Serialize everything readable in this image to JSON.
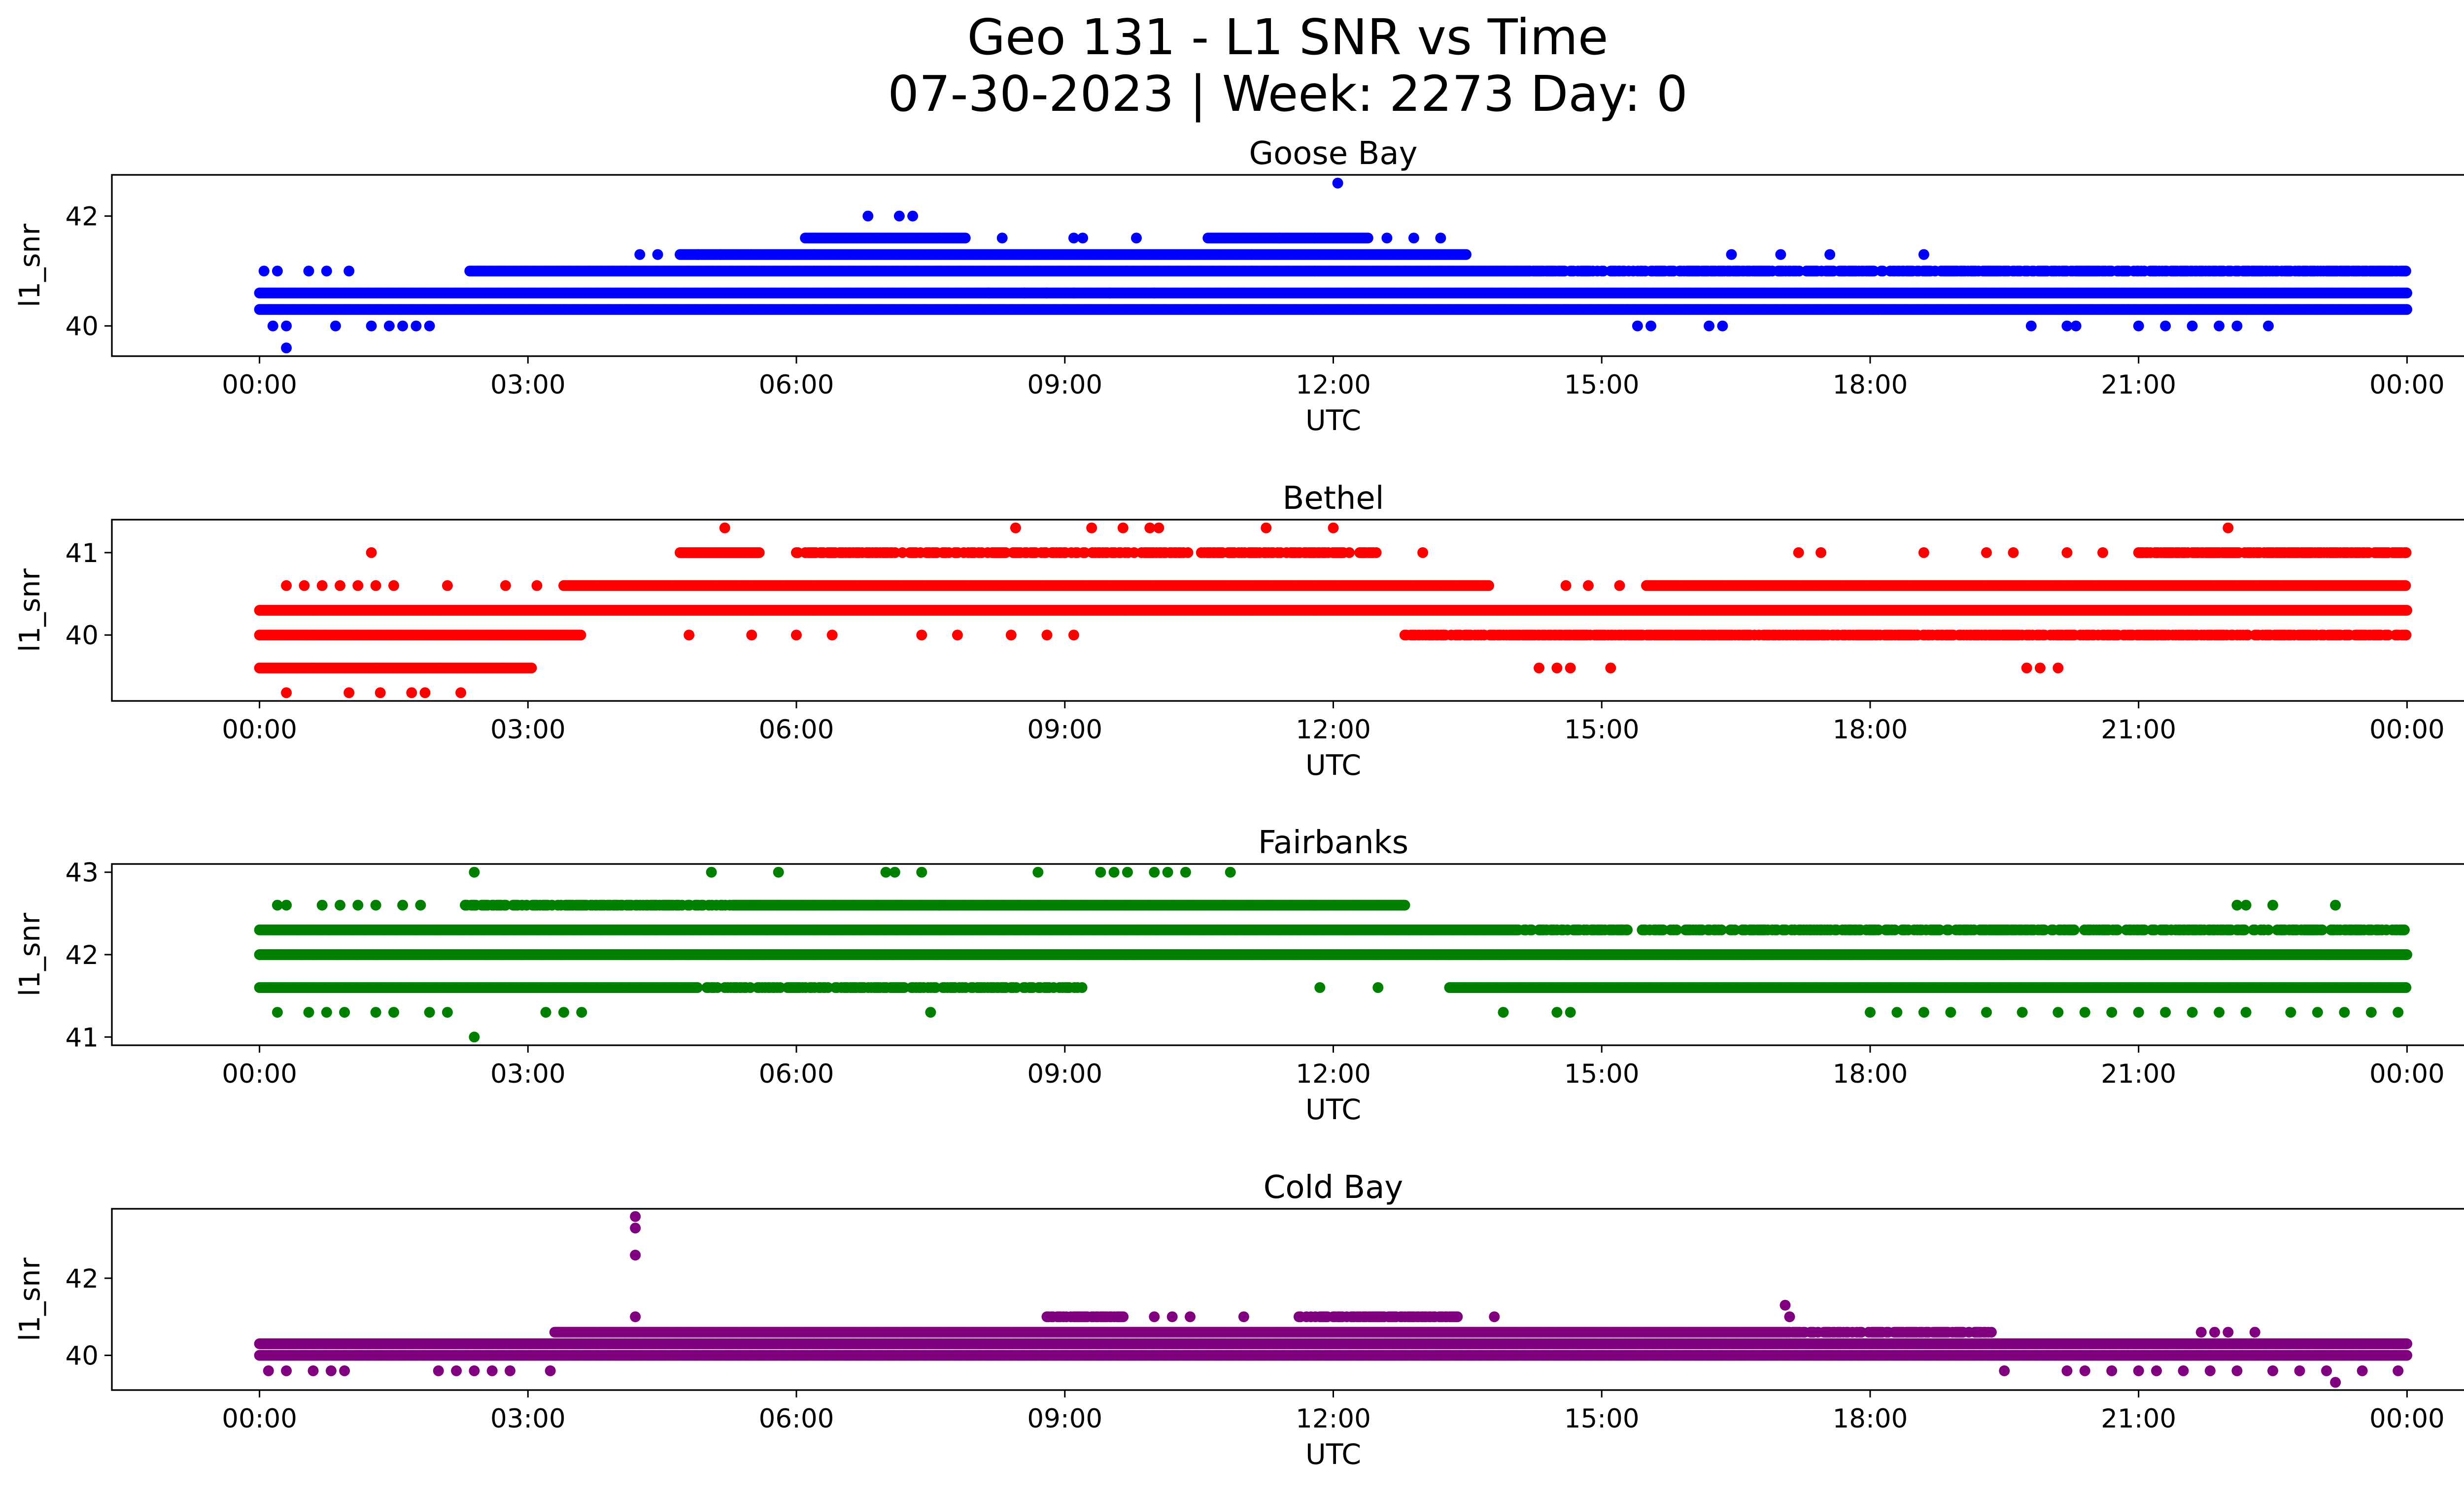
{
  "title": "Geo 131 - L1 SNR vs Time",
  "subtitle": "07-30-2023 | Week: 2273 Day: 0",
  "chart_data": [
    {
      "type": "scatter",
      "title": "Goose Bay",
      "xlabel": "UTC",
      "ylabel": "l1_snr",
      "color": "#0000ff",
      "xlim": [
        -1.65,
        25.65
      ],
      "ylim": [
        39.45,
        42.75
      ],
      "xticks": [
        0,
        3,
        6,
        9,
        12,
        15,
        18,
        21,
        24
      ],
      "xtick_labels": [
        "00:00",
        "03:00",
        "06:00",
        "09:00",
        "12:00",
        "15:00",
        "18:00",
        "21:00",
        "00:00"
      ],
      "yticks": [
        40,
        42
      ],
      "bands": [
        {
          "y": 40.3,
          "start": 0.0,
          "end": 24.0
        },
        {
          "y": 40.6,
          "start": 0.0,
          "end": 24.0
        },
        {
          "y": 41.0,
          "start": 2.35,
          "end": 14.2
        },
        {
          "y": 41.0,
          "start": 14.2,
          "end": 24.0,
          "density": 0.7
        },
        {
          "y": 41.3,
          "start": 4.7,
          "end": 13.5
        },
        {
          "y": 41.6,
          "start": 6.1,
          "end": 7.9
        },
        {
          "y": 41.6,
          "start": 10.6,
          "end": 12.4
        }
      ],
      "points": [
        [
          0.05,
          41.0
        ],
        [
          0.2,
          41.0
        ],
        [
          0.55,
          41.0
        ],
        [
          0.75,
          41.0
        ],
        [
          1.0,
          41.0
        ],
        [
          0.15,
          40.0
        ],
        [
          0.3,
          40.0
        ],
        [
          0.85,
          40.0
        ],
        [
          1.25,
          40.0
        ],
        [
          1.45,
          40.0
        ],
        [
          1.6,
          40.0
        ],
        [
          1.75,
          40.0
        ],
        [
          1.9,
          40.0
        ],
        [
          0.3,
          39.6
        ],
        [
          4.25,
          41.3
        ],
        [
          4.45,
          41.3
        ],
        [
          4.9,
          41.3
        ],
        [
          5.15,
          41.3
        ],
        [
          6.8,
          42.0
        ],
        [
          7.15,
          42.0
        ],
        [
          7.3,
          42.0
        ],
        [
          8.3,
          41.6
        ],
        [
          9.1,
          41.6
        ],
        [
          9.2,
          41.6
        ],
        [
          9.8,
          41.6
        ],
        [
          11.4,
          41.6
        ],
        [
          12.6,
          41.6
        ],
        [
          12.9,
          41.6
        ],
        [
          13.2,
          41.6
        ],
        [
          8.15,
          40.6
        ],
        [
          8.55,
          40.6
        ],
        [
          8.8,
          40.6
        ],
        [
          9.1,
          40.6
        ],
        [
          9.5,
          40.6
        ],
        [
          10.0,
          40.6
        ],
        [
          12.05,
          42.6
        ],
        [
          15.4,
          40.0
        ],
        [
          15.55,
          40.0
        ],
        [
          16.2,
          40.0
        ],
        [
          16.35,
          40.0
        ],
        [
          19.8,
          40.0
        ],
        [
          20.2,
          40.0
        ],
        [
          20.3,
          40.0
        ],
        [
          21.0,
          40.0
        ],
        [
          21.3,
          40.0
        ],
        [
          21.6,
          40.0
        ],
        [
          21.9,
          40.0
        ],
        [
          22.1,
          40.0
        ],
        [
          22.45,
          40.0
        ],
        [
          16.45,
          41.3
        ],
        [
          17.0,
          41.3
        ],
        [
          17.55,
          41.3
        ],
        [
          18.6,
          41.3
        ]
      ]
    },
    {
      "type": "scatter",
      "title": "Bethel",
      "xlabel": "UTC",
      "ylabel": "l1_snr",
      "color": "#ff0000",
      "xlim": [
        -1.65,
        25.65
      ],
      "ylim": [
        39.2,
        41.4
      ],
      "xticks": [
        0,
        3,
        6,
        9,
        12,
        15,
        18,
        21,
        24
      ],
      "xtick_labels": [
        "00:00",
        "03:00",
        "06:00",
        "09:00",
        "12:00",
        "15:00",
        "18:00",
        "21:00",
        "00:00"
      ],
      "yticks": [
        40,
        41
      ],
      "bands": [
        {
          "y": 39.6,
          "start": 0.0,
          "end": 3.05
        },
        {
          "y": 40.0,
          "start": 0.0,
          "end": 3.6
        },
        {
          "y": 40.0,
          "start": 12.8,
          "end": 24.0,
          "density": 0.7
        },
        {
          "y": 40.3,
          "start": 0.0,
          "end": 24.0
        },
        {
          "y": 40.6,
          "start": 3.4,
          "end": 13.75
        },
        {
          "y": 40.6,
          "start": 15.5,
          "end": 24.0
        },
        {
          "y": 41.0,
          "start": 4.7,
          "end": 5.6
        },
        {
          "y": 41.0,
          "start": 6.0,
          "end": 12.5,
          "density": 0.55
        },
        {
          "y": 41.0,
          "start": 21.0,
          "end": 24.0,
          "density": 0.75
        }
      ],
      "points": [
        [
          0.3,
          39.3
        ],
        [
          1.0,
          39.3
        ],
        [
          1.35,
          39.3
        ],
        [
          1.7,
          39.3
        ],
        [
          1.85,
          39.3
        ],
        [
          2.25,
          39.3
        ],
        [
          0.3,
          40.6
        ],
        [
          0.5,
          40.6
        ],
        [
          0.7,
          40.6
        ],
        [
          0.9,
          40.6
        ],
        [
          1.1,
          40.6
        ],
        [
          1.3,
          40.6
        ],
        [
          1.5,
          40.6
        ],
        [
          2.1,
          40.6
        ],
        [
          2.75,
          40.6
        ],
        [
          3.1,
          40.6
        ],
        [
          1.25,
          41.0
        ],
        [
          5.2,
          41.3
        ],
        [
          8.45,
          41.3
        ],
        [
          9.3,
          41.3
        ],
        [
          9.65,
          41.3
        ],
        [
          9.95,
          41.3
        ],
        [
          10.05,
          41.3
        ],
        [
          11.25,
          41.3
        ],
        [
          12.0,
          41.3
        ],
        [
          22.0,
          41.3
        ],
        [
          4.8,
          40.0
        ],
        [
          5.5,
          40.0
        ],
        [
          6.0,
          40.0
        ],
        [
          6.4,
          40.0
        ],
        [
          7.4,
          40.0
        ],
        [
          7.8,
          40.0
        ],
        [
          8.4,
          40.0
        ],
        [
          8.8,
          40.0
        ],
        [
          9.1,
          40.0
        ],
        [
          14.3,
          39.6
        ],
        [
          14.5,
          39.6
        ],
        [
          14.65,
          39.6
        ],
        [
          15.1,
          39.6
        ],
        [
          19.75,
          39.6
        ],
        [
          19.9,
          39.6
        ],
        [
          20.1,
          39.6
        ],
        [
          13.0,
          41.0
        ],
        [
          17.2,
          41.0
        ],
        [
          17.45,
          41.0
        ],
        [
          18.6,
          41.0
        ],
        [
          19.3,
          41.0
        ],
        [
          19.6,
          41.0
        ],
        [
          20.2,
          41.0
        ],
        [
          20.6,
          41.0
        ],
        [
          14.6,
          40.6
        ],
        [
          14.85,
          40.6
        ],
        [
          15.2,
          40.6
        ]
      ]
    },
    {
      "type": "scatter",
      "title": "Fairbanks",
      "xlabel": "UTC",
      "ylabel": "l1_snr",
      "color": "#008000",
      "xlim": [
        -1.65,
        25.65
      ],
      "ylim": [
        40.9,
        43.1
      ],
      "xticks": [
        0,
        3,
        6,
        9,
        12,
        15,
        18,
        21,
        24
      ],
      "xtick_labels": [
        "00:00",
        "03:00",
        "06:00",
        "09:00",
        "12:00",
        "15:00",
        "18:00",
        "21:00",
        "00:00"
      ],
      "yticks": [
        41,
        42,
        43
      ],
      "bands": [
        {
          "y": 41.6,
          "start": 0.0,
          "end": 4.9
        },
        {
          "y": 41.6,
          "start": 5.0,
          "end": 9.2,
          "density": 0.55
        },
        {
          "y": 41.6,
          "start": 13.3,
          "end": 24.0
        },
        {
          "y": 42.0,
          "start": 0.0,
          "end": 24.0
        },
        {
          "y": 42.3,
          "start": 0.0,
          "end": 14.05
        },
        {
          "y": 42.3,
          "start": 14.05,
          "end": 24.0,
          "density": 0.6
        },
        {
          "y": 42.6,
          "start": 2.3,
          "end": 5.3,
          "density": 0.6
        },
        {
          "y": 42.6,
          "start": 5.3,
          "end": 12.8
        }
      ],
      "points": [
        [
          0.2,
          42.6
        ],
        [
          0.3,
          42.6
        ],
        [
          0.7,
          42.6
        ],
        [
          0.9,
          42.6
        ],
        [
          1.1,
          42.6
        ],
        [
          1.3,
          42.6
        ],
        [
          1.6,
          42.6
        ],
        [
          1.8,
          42.6
        ],
        [
          2.3,
          42.6
        ],
        [
          0.2,
          41.3
        ],
        [
          0.55,
          41.3
        ],
        [
          0.75,
          41.3
        ],
        [
          0.95,
          41.3
        ],
        [
          1.3,
          41.3
        ],
        [
          1.5,
          41.3
        ],
        [
          1.9,
          41.3
        ],
        [
          2.1,
          41.3
        ],
        [
          3.2,
          41.3
        ],
        [
          3.4,
          41.3
        ],
        [
          3.6,
          41.3
        ],
        [
          2.4,
          43.0
        ],
        [
          5.05,
          43.0
        ],
        [
          5.8,
          43.0
        ],
        [
          7.0,
          43.0
        ],
        [
          7.1,
          43.0
        ],
        [
          7.4,
          43.0
        ],
        [
          8.7,
          43.0
        ],
        [
          9.4,
          43.0
        ],
        [
          9.55,
          43.0
        ],
        [
          9.7,
          43.0
        ],
        [
          10.0,
          43.0
        ],
        [
          10.15,
          43.0
        ],
        [
          10.35,
          43.0
        ],
        [
          10.85,
          43.0
        ],
        [
          2.4,
          41.0
        ],
        [
          7.5,
          41.3
        ],
        [
          13.9,
          41.3
        ],
        [
          14.5,
          41.3
        ],
        [
          14.65,
          41.3
        ],
        [
          11.85,
          41.6
        ],
        [
          12.5,
          41.6
        ],
        [
          9.05,
          41.6
        ],
        [
          8.1,
          41.6
        ],
        [
          8.4,
          41.6
        ],
        [
          14.15,
          42.3
        ],
        [
          14.55,
          42.3
        ],
        [
          22.1,
          42.6
        ],
        [
          22.2,
          42.6
        ],
        [
          22.5,
          42.6
        ],
        [
          23.2,
          42.6
        ],
        [
          18.0,
          41.3
        ],
        [
          18.3,
          41.3
        ],
        [
          18.6,
          41.3
        ],
        [
          18.9,
          41.3
        ],
        [
          19.3,
          41.3
        ],
        [
          19.7,
          41.3
        ],
        [
          20.1,
          41.3
        ],
        [
          20.4,
          41.3
        ],
        [
          20.7,
          41.3
        ],
        [
          21.0,
          41.3
        ],
        [
          21.3,
          41.3
        ],
        [
          21.6,
          41.3
        ],
        [
          21.9,
          41.3
        ],
        [
          22.2,
          41.3
        ],
        [
          22.7,
          41.3
        ],
        [
          23.0,
          41.3
        ],
        [
          23.3,
          41.3
        ],
        [
          23.6,
          41.3
        ],
        [
          23.9,
          41.3
        ]
      ]
    },
    {
      "type": "scatter",
      "title": "Cold Bay",
      "xlabel": "UTC",
      "ylabel": "l1_snr",
      "color": "#800080",
      "xlim": [
        -1.65,
        25.65
      ],
      "ylim": [
        39.1,
        43.8
      ],
      "xticks": [
        0,
        3,
        6,
        9,
        12,
        15,
        18,
        21,
        24
      ],
      "xtick_labels": [
        "00:00",
        "03:00",
        "06:00",
        "09:00",
        "12:00",
        "15:00",
        "18:00",
        "21:00",
        "00:00"
      ],
      "yticks": [
        40,
        42
      ],
      "bands": [
        {
          "y": 40.0,
          "start": 0.0,
          "end": 24.0
        },
        {
          "y": 40.3,
          "start": 0.0,
          "end": 24.0
        },
        {
          "y": 40.6,
          "start": 3.3,
          "end": 17.1
        },
        {
          "y": 40.6,
          "start": 17.1,
          "end": 19.4,
          "density": 0.6
        },
        {
          "y": 41.0,
          "start": 8.8,
          "end": 9.7,
          "density": 0.7
        },
        {
          "y": 41.0,
          "start": 11.6,
          "end": 13.4,
          "density": 0.7
        }
      ],
      "points": [
        [
          0.1,
          39.6
        ],
        [
          0.3,
          39.6
        ],
        [
          0.6,
          39.6
        ],
        [
          0.8,
          39.6
        ],
        [
          0.95,
          39.6
        ],
        [
          2.0,
          39.6
        ],
        [
          2.2,
          39.6
        ],
        [
          2.4,
          39.6
        ],
        [
          2.6,
          39.6
        ],
        [
          2.8,
          39.6
        ],
        [
          3.25,
          39.6
        ],
        [
          4.2,
          43.6
        ],
        [
          4.2,
          43.3
        ],
        [
          4.2,
          42.6
        ],
        [
          4.2,
          41.0
        ],
        [
          10.0,
          41.0
        ],
        [
          10.2,
          41.0
        ],
        [
          10.4,
          41.0
        ],
        [
          11.0,
          41.0
        ],
        [
          13.8,
          41.0
        ],
        [
          17.05,
          41.3
        ],
        [
          17.1,
          41.0
        ],
        [
          19.5,
          39.6
        ],
        [
          20.2,
          39.6
        ],
        [
          20.4,
          39.6
        ],
        [
          20.7,
          39.6
        ],
        [
          21.0,
          39.6
        ],
        [
          21.2,
          39.6
        ],
        [
          21.5,
          39.6
        ],
        [
          21.8,
          39.6
        ],
        [
          22.1,
          39.6
        ],
        [
          22.5,
          39.6
        ],
        [
          22.8,
          39.6
        ],
        [
          23.1,
          39.6
        ],
        [
          23.5,
          39.6
        ],
        [
          23.9,
          39.6
        ],
        [
          23.2,
          39.3
        ],
        [
          21.7,
          40.6
        ],
        [
          21.85,
          40.6
        ],
        [
          22.0,
          40.6
        ],
        [
          22.3,
          40.6
        ],
        [
          23.1,
          40.3
        ],
        [
          23.5,
          40.3
        ],
        [
          23.9,
          40.3
        ]
      ]
    }
  ]
}
